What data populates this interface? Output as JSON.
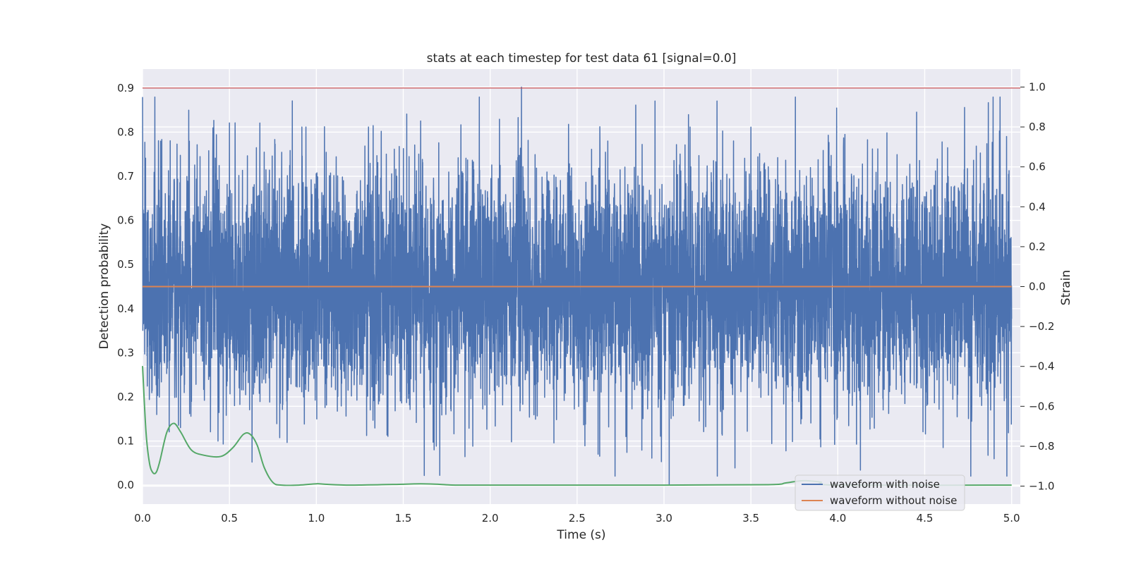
{
  "chart_data": {
    "type": "line",
    "title": "stats at each timestep for test data 61 [signal=0.0]",
    "xlabel": "Time (s)",
    "ylabel_left": "Detection probability",
    "ylabel_right": "Strain",
    "xlim": [
      0.0,
      5.05
    ],
    "ylim_left": [
      -0.043,
      0.943
    ],
    "ylim_right": [
      -1.09,
      1.09
    ],
    "x_ticks": [
      "0.0",
      "0.5",
      "1.0",
      "1.5",
      "2.0",
      "2.5",
      "3.0",
      "3.5",
      "4.0",
      "4.5",
      "5.0"
    ],
    "y_left_ticks": [
      "0.0",
      "0.1",
      "0.2",
      "0.3",
      "0.4",
      "0.5",
      "0.6",
      "0.7",
      "0.8",
      "0.9"
    ],
    "y_right_ticks": [
      "−1.0",
      "−0.8",
      "−0.6",
      "−0.4",
      "−0.2",
      "0.0",
      "0.2",
      "0.4",
      "0.6",
      "0.8",
      "1.0"
    ],
    "grid": true,
    "legend_placement": "lower-right",
    "colors": {
      "noise": "#4c72b0",
      "clean": "#dd8452",
      "probability": "#55a868",
      "threshold": "#c44e52",
      "background": "#eaeaf2"
    },
    "threshold": {
      "axis": "left",
      "y": 0.9
    },
    "series": [
      {
        "name": "waveform with noise",
        "axis": "right",
        "style": "dense noise centered on 0, typical amplitude about 0.3, peaks near ±1.0",
        "x_range": [
          0.0,
          5.0
        ],
        "peaks": [
          {
            "x": 0.5,
            "y": 0.82
          },
          {
            "x": 0.63,
            "y": 0.85
          },
          {
            "x": 0.94,
            "y": 0.8
          },
          {
            "x": 1.3,
            "y": 0.8
          },
          {
            "x": 1.6,
            "y": 0.83
          },
          {
            "x": 1.9,
            "y": 0.77
          },
          {
            "x": 2.18,
            "y": 1.0
          },
          {
            "x": 3.15,
            "y": 0.8
          },
          {
            "x": 3.4,
            "y": 0.73
          },
          {
            "x": 4.93,
            "y": 0.78
          },
          {
            "x": 3.03,
            "y": -0.99
          },
          {
            "x": 4.13,
            "y": -0.92
          },
          {
            "x": 0.63,
            "y": -0.88
          },
          {
            "x": 2.93,
            "y": -0.86
          },
          {
            "x": 2.63,
            "y": -0.85
          },
          {
            "x": 1.9,
            "y": -0.8
          },
          {
            "x": 1.69,
            "y": -0.8
          },
          {
            "x": 3.9,
            "y": -0.75
          }
        ]
      },
      {
        "name": "waveform without noise",
        "axis": "right",
        "x": [
          0.0,
          5.0
        ],
        "y": [
          0.0,
          0.0
        ]
      },
      {
        "axis": "left",
        "x": [
          0.0,
          0.02,
          0.04,
          0.06,
          0.08,
          0.1,
          0.14,
          0.18,
          0.22,
          0.28,
          0.35,
          0.45,
          0.52,
          0.58,
          0.62,
          0.66,
          0.7,
          0.75,
          0.8,
          0.9,
          1.0,
          1.05,
          1.2,
          1.5,
          1.6,
          1.7,
          1.8,
          2.0,
          3.0,
          3.6,
          3.7,
          3.8,
          3.9,
          4.0,
          5.0
        ],
        "y": [
          0.27,
          0.12,
          0.05,
          0.028,
          0.03,
          0.055,
          0.12,
          0.14,
          0.12,
          0.08,
          0.068,
          0.065,
          0.085,
          0.115,
          0.115,
          0.09,
          0.04,
          0.006,
          0.0,
          0.0,
          0.003,
          0.002,
          0.0,
          0.002,
          0.003,
          0.002,
          0.0,
          0.0,
          0.0,
          0.001,
          0.005,
          0.01,
          0.007,
          0.0,
          0.0
        ]
      }
    ]
  }
}
